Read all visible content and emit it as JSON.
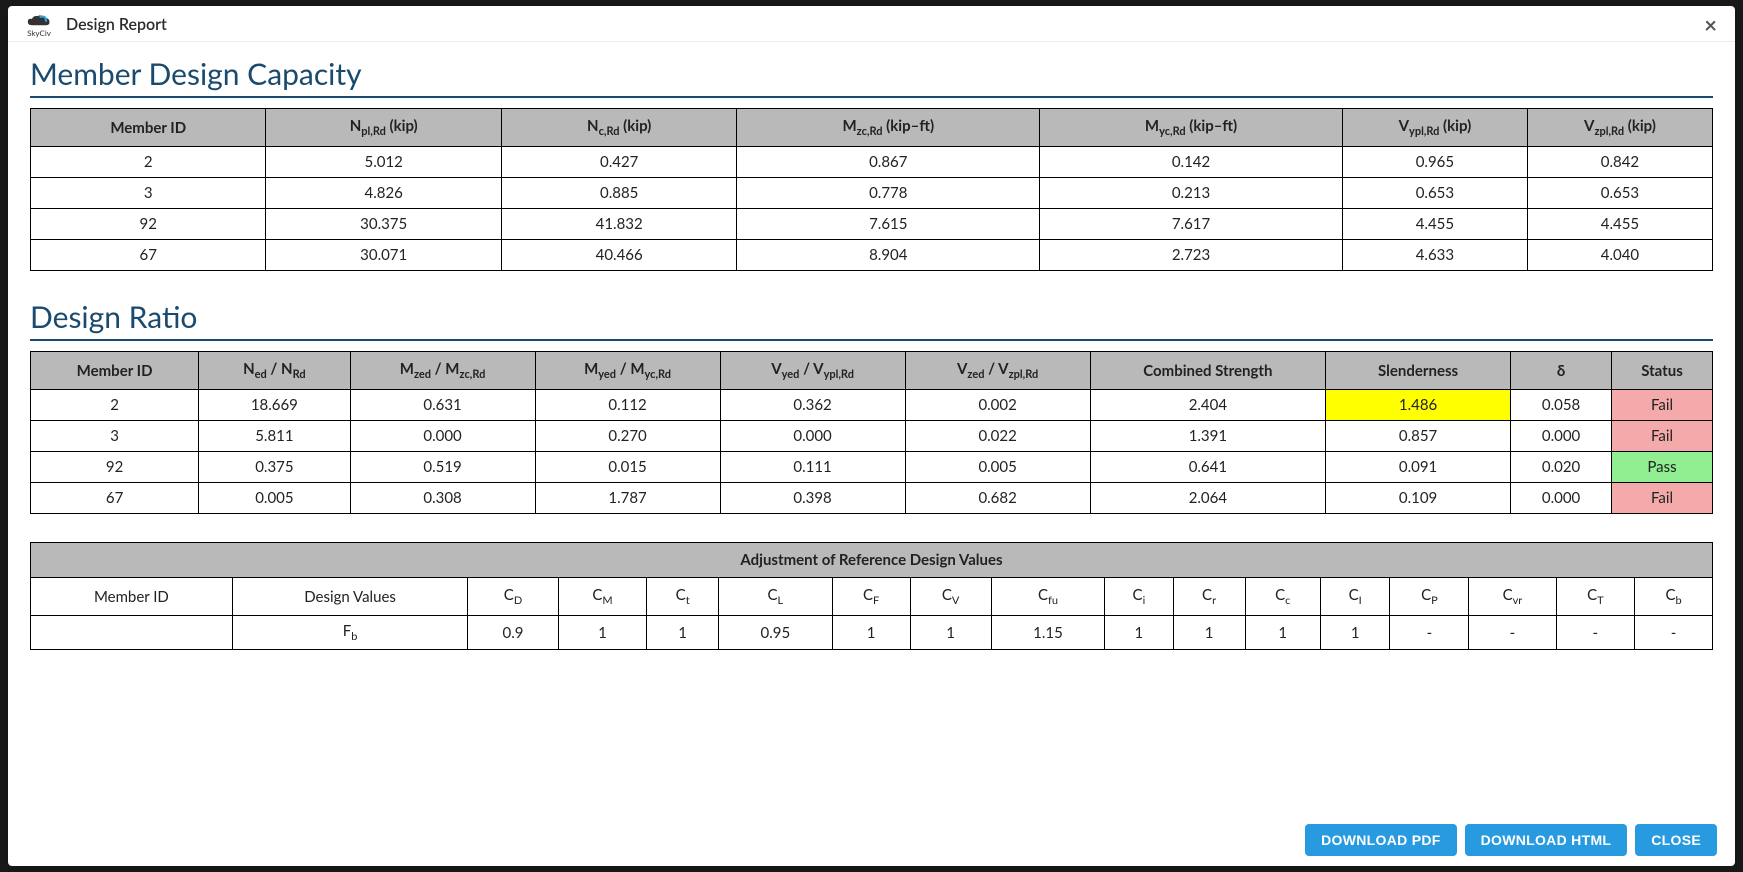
{
  "header": {
    "logo_text": "SkyCiv",
    "title": "Design Report",
    "close_glyph": "×"
  },
  "sections": {
    "capacity": {
      "title": "Member Design Capacity",
      "columns": [
        {
          "text": "Member ID"
        },
        {
          "pre": "N",
          "sub": "pl,Rd",
          "post": " (kip)"
        },
        {
          "pre": "N",
          "sub": "c,Rd",
          "post": " (kip)"
        },
        {
          "pre": "M",
          "sub": "zc,Rd",
          "post": " (kip–ft)"
        },
        {
          "pre": "M",
          "sub": "yc,Rd",
          "post": " (kip–ft)"
        },
        {
          "pre": "V",
          "sub": "ypl,Rd",
          "post": " (kip)"
        },
        {
          "pre": "V",
          "sub": "zpl,Rd",
          "post": " (kip)"
        }
      ],
      "rows": [
        [
          "2",
          "5.012",
          "0.427",
          "0.867",
          "0.142",
          "0.965",
          "0.842"
        ],
        [
          "3",
          "4.826",
          "0.885",
          "0.778",
          "0.213",
          "0.653",
          "0.653"
        ],
        [
          "92",
          "30.375",
          "41.832",
          "7.615",
          "7.617",
          "4.455",
          "4.455"
        ],
        [
          "67",
          "30.071",
          "40.466",
          "8.904",
          "2.723",
          "4.633",
          "4.040"
        ]
      ]
    },
    "ratio": {
      "title": "Design Ratio",
      "columns": [
        {
          "text": "Member ID"
        },
        {
          "pre": "N",
          "sub": "ed",
          "post": " / N",
          "sub2": "Rd"
        },
        {
          "pre": "M",
          "sub": "zed",
          "post": " / M",
          "sub2": "zc,Rd"
        },
        {
          "pre": "M",
          "sub": "yed",
          "post": " / M",
          "sub2": "yc,Rd"
        },
        {
          "pre": "V",
          "sub": "yed",
          "post": " / V",
          "sub2": "ypl,Rd"
        },
        {
          "pre": "V",
          "sub": "zed",
          "post": " / V",
          "sub2": "zpl,Rd"
        },
        {
          "text": "Combined Strength"
        },
        {
          "text": "Slenderness"
        },
        {
          "text": "δ"
        },
        {
          "text": "Status"
        }
      ],
      "rows": [
        {
          "cells": [
            "2",
            "18.669",
            "0.631",
            "0.112",
            "0.362",
            "0.002",
            "2.404",
            "1.486",
            "0.058",
            "Fail"
          ],
          "highlight_col": 7,
          "status": "Fail"
        },
        {
          "cells": [
            "3",
            "5.811",
            "0.000",
            "0.270",
            "0.000",
            "0.022",
            "1.391",
            "0.857",
            "0.000",
            "Fail"
          ],
          "status": "Fail"
        },
        {
          "cells": [
            "92",
            "0.375",
            "0.519",
            "0.015",
            "0.111",
            "0.005",
            "0.641",
            "0.091",
            "0.020",
            "Pass"
          ],
          "status": "Pass"
        },
        {
          "cells": [
            "67",
            "0.005",
            "0.308",
            "1.787",
            "0.398",
            "0.682",
            "2.064",
            "0.109",
            "0.000",
            "Fail"
          ],
          "status": "Fail"
        }
      ],
      "status_colors": {
        "Pass": "cell-pass",
        "Fail": "cell-fail"
      },
      "highlight_class": "cell-yellow"
    },
    "adjustment": {
      "title": "Adjustment of Reference Design Values",
      "columns": [
        {
          "text": "Member ID"
        },
        {
          "text": "Design Values"
        },
        {
          "pre": "C",
          "sub": "D"
        },
        {
          "pre": "C",
          "sub": "M"
        },
        {
          "pre": "C",
          "sub": "t"
        },
        {
          "pre": "C",
          "sub": "L"
        },
        {
          "pre": "C",
          "sub": "F"
        },
        {
          "pre": "C",
          "sub": "V"
        },
        {
          "pre": "C",
          "sub": "fu"
        },
        {
          "pre": "C",
          "sub": "i"
        },
        {
          "pre": "C",
          "sub": "r"
        },
        {
          "pre": "C",
          "sub": "c"
        },
        {
          "pre": "C",
          "sub": "I"
        },
        {
          "pre": "C",
          "sub": "P"
        },
        {
          "pre": "C",
          "sub": "vr"
        },
        {
          "pre": "C",
          "sub": "T"
        },
        {
          "pre": "C",
          "sub": "b"
        }
      ],
      "rows": [
        {
          "design_value": {
            "pre": "F",
            "sub": "b"
          },
          "cells": [
            "0.9",
            "1",
            "1",
            "0.95",
            "1",
            "1",
            "1.15",
            "1",
            "1",
            "1",
            "1",
            "-",
            "-",
            "-",
            "-"
          ]
        }
      ]
    }
  },
  "footer": {
    "download_pdf": "DOWNLOAD PDF",
    "download_html": "DOWNLOAD HTML",
    "close": "CLOSE"
  },
  "style": {
    "header_bg": "#b9b9b9",
    "border": "#000000",
    "heading_color": "#1a4a6e",
    "btn_bg": "#289be0",
    "yellow": "#ffff00",
    "pass": "#91ee91",
    "fail": "#f4aaaa"
  }
}
